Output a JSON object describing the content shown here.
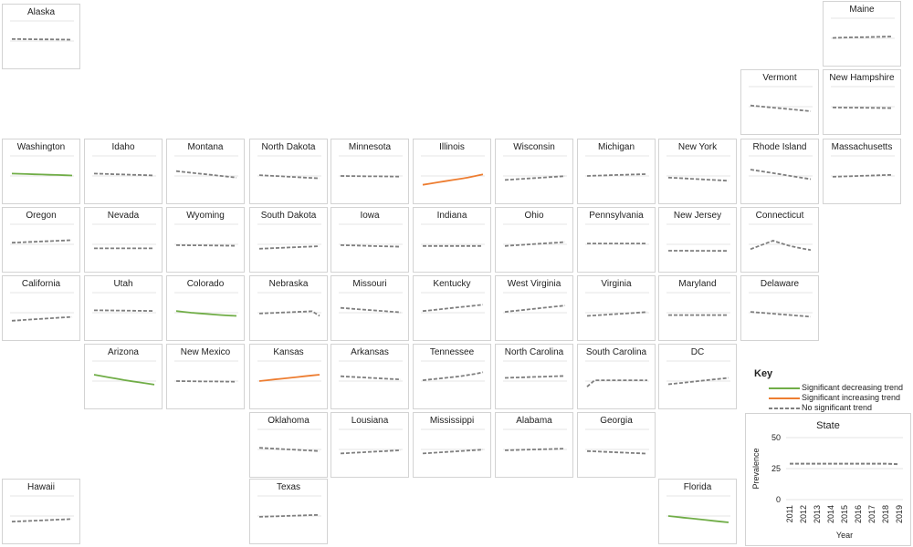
{
  "chart_data": {
    "type": "line",
    "x": [
      2011,
      2012,
      2013,
      2014,
      2015,
      2016,
      2017,
      2018,
      2019
    ],
    "ylim": [
      0,
      50
    ],
    "legend": {
      "title": "Key",
      "placement": "bottom-right",
      "entries": [
        {
          "label": "Significant decreasing trend",
          "trend": "decreasing",
          "color": "#70ad47",
          "style": "solid"
        },
        {
          "label": "Significant increasing trend",
          "trend": "increasing",
          "color": "#ed7d31",
          "style": "solid"
        },
        {
          "label": "No significant trend",
          "trend": "none",
          "color": "#7f7f7f",
          "style": "dashed"
        }
      ]
    },
    "states": [
      {
        "name": "Alaska",
        "trend": "none",
        "values": [
          27.5,
          27.4,
          27.3,
          27.2,
          27.1,
          27.0,
          26.9,
          26.8,
          26.7
        ]
      },
      {
        "name": "Maine",
        "trend": "none",
        "values": [
          25.5,
          25.8,
          26.0,
          26.2,
          26.4,
          26.6,
          26.8,
          27.0,
          27.2
        ]
      },
      {
        "name": "Vermont",
        "trend": "none",
        "values": [
          26.5,
          25.6,
          24.7,
          23.8,
          22.9,
          22.0,
          21.1,
          20.2,
          19.3
        ]
      },
      {
        "name": "New Hampshire",
        "trend": "none",
        "values": [
          24.0,
          23.9,
          23.8,
          23.7,
          23.6,
          23.5,
          23.4,
          23.3,
          23.2
        ]
      },
      {
        "name": "Washington",
        "trend": "decreasing",
        "values": [
          28.0,
          27.7,
          27.4,
          27.1,
          26.8,
          26.5,
          26.2,
          25.9,
          25.6
        ]
      },
      {
        "name": "Idaho",
        "trend": "none",
        "values": [
          28.0,
          27.7,
          27.4,
          27.1,
          26.8,
          26.5,
          26.2,
          25.9,
          25.6
        ]
      },
      {
        "name": "Montana",
        "trend": "none",
        "values": [
          31.0,
          30.0,
          29.0,
          28.0,
          27.0,
          26.0,
          25.0,
          24.0,
          23.0
        ]
      },
      {
        "name": "North Dakota",
        "trend": "none",
        "values": [
          26.0,
          25.5,
          25.0,
          24.5,
          24.0,
          23.5,
          23.0,
          22.5,
          22.0
        ]
      },
      {
        "name": "Minnesota",
        "trend": "none",
        "values": [
          25.0,
          24.9,
          24.8,
          24.7,
          24.6,
          24.5,
          24.4,
          24.3,
          24.2
        ]
      },
      {
        "name": "Illinois",
        "trend": "increasing",
        "values": [
          14.0,
          15.5,
          17.0,
          18.5,
          20.0,
          21.5,
          23.0,
          25.0,
          27.0
        ]
      },
      {
        "name": "Wisconsin",
        "trend": "none",
        "values": [
          20.0,
          20.6,
          21.2,
          21.8,
          22.4,
          23.0,
          23.6,
          24.2,
          24.8
        ]
      },
      {
        "name": "Michigan",
        "trend": "none",
        "values": [
          25.0,
          25.3,
          25.6,
          25.9,
          26.2,
          26.5,
          26.8,
          27.1,
          27.4
        ]
      },
      {
        "name": "New York",
        "trend": "none",
        "values": [
          23.0,
          22.5,
          22.0,
          21.5,
          21.0,
          20.5,
          20.0,
          19.5,
          19.0
        ]
      },
      {
        "name": "Rhode Island",
        "trend": "none",
        "values": [
          33.0,
          31.5,
          30.0,
          28.5,
          27.0,
          25.5,
          24.0,
          22.5,
          21.0
        ]
      },
      {
        "name": "Massachusetts",
        "trend": "none",
        "values": [
          24.0,
          24.3,
          24.6,
          24.9,
          25.2,
          25.5,
          25.8,
          26.1,
          26.4
        ]
      },
      {
        "name": "Oregon",
        "trend": "none",
        "values": [
          27.0,
          27.4,
          27.8,
          28.2,
          28.6,
          29.0,
          29.4,
          29.8,
          30.2
        ]
      },
      {
        "name": "Nevada",
        "trend": "none",
        "values": [
          20.0,
          20.0,
          20.0,
          20.0,
          20.0,
          20.0,
          20.0,
          20.0,
          20.0
        ]
      },
      {
        "name": "Wyoming",
        "trend": "none",
        "values": [
          24.0,
          23.9,
          23.8,
          23.7,
          23.6,
          23.5,
          23.4,
          23.3,
          23.2
        ]
      },
      {
        "name": "South Dakota",
        "trend": "none",
        "values": [
          19.5,
          19.9,
          20.3,
          20.7,
          21.1,
          21.5,
          21.9,
          22.3,
          22.7
        ]
      },
      {
        "name": "Iowa",
        "trend": "none",
        "values": [
          24.0,
          23.75,
          23.5,
          23.25,
          23.0,
          22.75,
          22.5,
          22.25,
          22.0
        ]
      },
      {
        "name": "Indiana",
        "trend": "none",
        "values": [
          23.0,
          23.0,
          23.0,
          23.0,
          23.0,
          23.0,
          23.0,
          23.0,
          23.0
        ]
      },
      {
        "name": "Ohio",
        "trend": "none",
        "values": [
          23.0,
          23.6,
          24.2,
          24.8,
          25.4,
          26.0,
          26.6,
          27.2,
          27.8
        ]
      },
      {
        "name": "Pennsylvania",
        "trend": "none",
        "values": [
          26.0,
          26.0,
          26.0,
          26.0,
          26.0,
          26.0,
          26.0,
          26.0,
          26.0
        ]
      },
      {
        "name": "New Jersey",
        "trend": "none",
        "values": [
          17.0,
          17.0,
          17.0,
          16.9,
          16.9,
          16.9,
          16.8,
          16.8,
          16.8
        ]
      },
      {
        "name": "Connecticut",
        "trend": "none",
        "values": [
          19.0,
          22.5,
          26.0,
          29.5,
          26.5,
          23.5,
          21.5,
          19.5,
          18.0
        ]
      },
      {
        "name": "California",
        "trend": "none",
        "values": [
          15.0,
          15.6,
          16.2,
          16.8,
          17.4,
          18.0,
          18.6,
          19.2,
          19.8
        ]
      },
      {
        "name": "Utah",
        "trend": "none",
        "values": [
          28.0,
          27.9,
          27.8,
          27.7,
          27.6,
          27.5,
          27.4,
          27.3,
          27.2
        ]
      },
      {
        "name": "Colorado",
        "trend": "decreasing",
        "values": [
          27.0,
          26.0,
          25.0,
          24.2,
          23.5,
          22.7,
          22.0,
          21.5,
          21.0
        ]
      },
      {
        "name": "Nebraska",
        "trend": "none",
        "values": [
          24.0,
          24.4,
          24.8,
          25.2,
          25.6,
          26.0,
          26.4,
          26.8,
          21.0
        ]
      },
      {
        "name": "Missouri",
        "trend": "none",
        "values": [
          31.0,
          30.3,
          29.6,
          28.9,
          28.2,
          27.5,
          26.8,
          26.1,
          25.4
        ]
      },
      {
        "name": "Kentucky",
        "trend": "none",
        "values": [
          27.0,
          28.0,
          29.0,
          30.0,
          31.0,
          32.0,
          33.0,
          34.0,
          35.0
        ]
      },
      {
        "name": "West Virginia",
        "trend": "none",
        "values": [
          26.0,
          27.0,
          28.0,
          29.0,
          30.0,
          31.0,
          32.0,
          33.0,
          34.0
        ]
      },
      {
        "name": "Virginia",
        "trend": "none",
        "values": [
          21.0,
          21.6,
          22.2,
          22.8,
          23.4,
          24.0,
          24.6,
          25.2,
          25.8
        ]
      },
      {
        "name": "Maryland",
        "trend": "none",
        "values": [
          22.0,
          22.0,
          22.0,
          22.0,
          22.0,
          22.0,
          22.0,
          22.0,
          22.0
        ]
      },
      {
        "name": "Delaware",
        "trend": "none",
        "values": [
          26.0,
          25.25,
          24.5,
          23.75,
          23.0,
          22.25,
          21.5,
          20.75,
          20.0
        ]
      },
      {
        "name": "Arizona",
        "trend": "decreasing",
        "values": [
          33.0,
          31.3,
          29.6,
          27.9,
          26.2,
          24.8,
          23.4,
          22.0,
          20.6
        ]
      },
      {
        "name": "New Mexico",
        "trend": "none",
        "values": [
          25.0,
          24.9,
          24.8,
          24.7,
          24.6,
          24.5,
          24.4,
          24.3,
          24.2
        ]
      },
      {
        "name": "Kansas",
        "trend": "increasing",
        "values": [
          25.0,
          26.0,
          27.0,
          28.0,
          29.0,
          30.0,
          31.0,
          32.0,
          33.0
        ]
      },
      {
        "name": "Arkansas",
        "trend": "none",
        "values": [
          31.0,
          30.5,
          30.0,
          29.5,
          29.0,
          28.5,
          28.0,
          27.5,
          27.0
        ]
      },
      {
        "name": "Tennessee",
        "trend": "none",
        "values": [
          26.0,
          27.0,
          28.0,
          29.0,
          30.0,
          31.0,
          32.5,
          34.0,
          36.0
        ]
      },
      {
        "name": "North Carolina",
        "trend": "none",
        "values": [
          29.0,
          29.3,
          29.6,
          29.9,
          30.2,
          30.5,
          30.8,
          31.1,
          31.4
        ]
      },
      {
        "name": "South Carolina",
        "trend": "none",
        "values": [
          18.0,
          26.0,
          26.0,
          26.0,
          26.0,
          26.0,
          26.0,
          26.0,
          26.0
        ]
      },
      {
        "name": "DC",
        "trend": "none",
        "values": [
          21.0,
          22.0,
          23.0,
          24.0,
          25.0,
          26.0,
          27.0,
          28.0,
          29.0
        ]
      },
      {
        "name": "Oklahoma",
        "trend": "none",
        "values": [
          27.0,
          26.5,
          26.0,
          25.5,
          25.0,
          24.5,
          24.0,
          23.5,
          23.0
        ]
      },
      {
        "name": "Lousiana",
        "trend": "none",
        "values": [
          20.0,
          20.5,
          21.0,
          21.5,
          22.0,
          22.5,
          23.0,
          23.5,
          24.0
        ]
      },
      {
        "name": "Mississippi",
        "trend": "none",
        "values": [
          20.0,
          20.6,
          21.2,
          21.8,
          22.4,
          23.0,
          23.6,
          24.2,
          24.8
        ]
      },
      {
        "name": "Alabama",
        "trend": "none",
        "values": [
          24.0,
          24.25,
          24.5,
          24.75,
          25.0,
          25.25,
          25.5,
          25.75,
          26.0
        ]
      },
      {
        "name": "Georgia",
        "trend": "none",
        "values": [
          23.0,
          22.6,
          22.2,
          21.8,
          21.4,
          21.0,
          20.6,
          20.2,
          19.8
        ]
      },
      {
        "name": "Hawaii",
        "trend": "none",
        "values": [
          18.0,
          18.4,
          18.8,
          19.2,
          19.6,
          20.0,
          20.4,
          20.8,
          21.2
        ]
      },
      {
        "name": "Texas",
        "trend": "none",
        "values": [
          24.0,
          24.3,
          24.6,
          24.9,
          25.2,
          25.5,
          25.8,
          26.1,
          26.4
        ]
      },
      {
        "name": "Florida",
        "trend": "decreasing",
        "values": [
          25.0,
          24.0,
          23.0,
          22.0,
          21.0,
          20.0,
          19.0,
          18.0,
          17.0
        ]
      }
    ],
    "state_average": {
      "title": "State",
      "xlabel": "Year",
      "ylabel": "Prevalence",
      "yticks": [
        0,
        25,
        50
      ],
      "trend": "none",
      "values": [
        29.0,
        29.0,
        29.0,
        29.0,
        29.0,
        29.0,
        29.0,
        29.0,
        28.5
      ]
    }
  }
}
